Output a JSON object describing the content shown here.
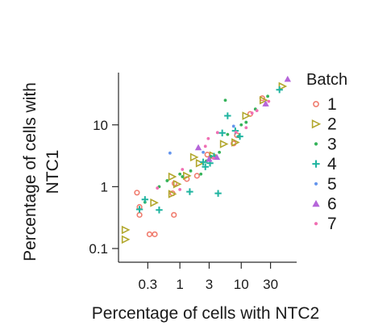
{
  "chart_data": {
    "type": "scatter",
    "xlabel": "Percentage of cells with NTC2",
    "ylabel_lines": [
      "Percentage of cells with",
      "NTC1"
    ],
    "xscale": "log",
    "yscale": "log",
    "xlim": [
      0.1,
      80
    ],
    "ylim": [
      0.06,
      70
    ],
    "xticks": [
      {
        "value": 0.3,
        "label": "0.3"
      },
      {
        "value": 1,
        "label": "1"
      },
      {
        "value": 3,
        "label": "3"
      },
      {
        "value": 10,
        "label": "10"
      },
      {
        "value": 30,
        "label": "30"
      }
    ],
    "yticks": [
      {
        "value": 0.1,
        "label": "0.1"
      },
      {
        "value": 1,
        "label": "1"
      },
      {
        "value": 10,
        "label": "10"
      }
    ],
    "grid": false,
    "legend": {
      "title": "Batch",
      "position": "right"
    },
    "series": [
      {
        "name": "1",
        "color": "#f07c6e",
        "marker": "circle",
        "points": [
          [
            0.22,
            0.47
          ],
          [
            0.22,
            0.35
          ],
          [
            0.32,
            0.17
          ],
          [
            0.39,
            0.17
          ],
          [
            0.2,
            0.8
          ],
          [
            0.76,
            0.78
          ],
          [
            0.82,
            1.13
          ],
          [
            0.8,
            0.35
          ],
          [
            1.3,
            1.33
          ],
          [
            1.9,
            1.5
          ],
          [
            2.8,
            3.3
          ],
          [
            7.5,
            5.0
          ],
          [
            14.0,
            15.0
          ],
          [
            22.0,
            27.0
          ],
          [
            8.5,
            6.8
          ]
        ]
      },
      {
        "name": "2",
        "color": "#b2a72c",
        "marker": "triangle-right",
        "points": [
          [
            0.13,
            0.2
          ],
          [
            0.13,
            0.14
          ],
          [
            0.38,
            0.55
          ],
          [
            0.75,
            0.76
          ],
          [
            0.75,
            1.45
          ],
          [
            1.3,
            1.5
          ],
          [
            2.1,
            2.4
          ],
          [
            3.5,
            3.2
          ],
          [
            5.2,
            4.9
          ],
          [
            8.0,
            5.2
          ],
          [
            23.0,
            25.0
          ],
          [
            47.0,
            42.0
          ],
          [
            1.7,
            3.0
          ],
          [
            12.0,
            14.0
          ],
          [
            0.9,
            1.1
          ]
        ]
      },
      {
        "name": "3",
        "color": "#35b35a",
        "marker": "dot",
        "points": [
          [
            0.27,
            0.56
          ],
          [
            0.46,
            1.0
          ],
          [
            0.62,
            1.25
          ],
          [
            1.1,
            1.45
          ],
          [
            1.5,
            1.8
          ],
          [
            2.2,
            1.6
          ],
          [
            2.7,
            2.6
          ],
          [
            3.2,
            3.1
          ],
          [
            4.4,
            3.6
          ],
          [
            5.5,
            25.0
          ],
          [
            9.0,
            6.5
          ],
          [
            10.0,
            10.0
          ],
          [
            12.0,
            11.0
          ],
          [
            17.0,
            18.0
          ],
          [
            27.0,
            29.0
          ],
          [
            1.0,
            1.6
          ],
          [
            6.0,
            7.0
          ]
        ]
      },
      {
        "name": "4",
        "color": "#1fb4a0",
        "marker": "plus",
        "points": [
          [
            0.22,
            0.43
          ],
          [
            0.27,
            0.62
          ],
          [
            0.46,
            0.42
          ],
          [
            1.45,
            0.83
          ],
          [
            2.6,
            2.1
          ],
          [
            3.1,
            2.4
          ],
          [
            4.2,
            0.78
          ],
          [
            4.9,
            7.4
          ],
          [
            6.0,
            14.0
          ],
          [
            8.0,
            8.0
          ],
          [
            9.5,
            6.5
          ],
          [
            2.4,
            2.5
          ],
          [
            42.0,
            37.0
          ],
          [
            3.6,
            3.1
          ]
        ]
      },
      {
        "name": "5",
        "color": "#6495ed",
        "marker": "dot",
        "points": [
          [
            0.69,
            3.5
          ],
          [
            2.4,
            3.6
          ],
          [
            7.5,
            9.5
          ],
          [
            3.0,
            2.7
          ],
          [
            25.0,
            21.0
          ]
        ]
      },
      {
        "name": "6",
        "color": "#b565d9",
        "marker": "triangle-up",
        "points": [
          [
            2.0,
            4.3
          ],
          [
            3.0,
            2.8
          ],
          [
            4.0,
            3.0
          ],
          [
            25.0,
            22.0
          ],
          [
            57.0,
            55.0
          ]
        ]
      },
      {
        "name": "7",
        "color": "#f06fb3",
        "marker": "dot",
        "points": [
          [
            0.43,
            0.95
          ],
          [
            1.1,
            1.9
          ],
          [
            2.9,
            6.0
          ],
          [
            3.5,
            2.9
          ],
          [
            4.1,
            7.5
          ],
          [
            8.2,
            7.6
          ],
          [
            12.0,
            9.0
          ],
          [
            15.0,
            15.5
          ],
          [
            18.0,
            17.0
          ],
          [
            28.0,
            24.0
          ],
          [
            2.6,
            4.5
          ],
          [
            1.0,
            0.9
          ]
        ]
      }
    ]
  }
}
